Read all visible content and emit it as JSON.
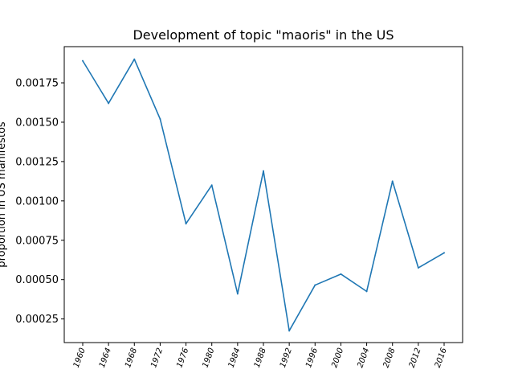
{
  "chart_data": {
    "type": "line",
    "title": "Development of topic \"maoris\" in the US",
    "xlabel": "",
    "ylabel": "proportion in US manifestos",
    "categories": [
      "1960",
      "1964",
      "1968",
      "1972",
      "1976",
      "1980",
      "1984",
      "1988",
      "1992",
      "1996",
      "2000",
      "2004",
      "2008",
      "2012",
      "2016"
    ],
    "series": [
      {
        "values": [
          0.00189,
          0.00162,
          0.0019,
          0.00152,
          0.000855,
          0.0011,
          0.00041,
          0.00119,
          0.000175,
          0.000465,
          0.000535,
          0.000425,
          0.001125,
          0.000575,
          0.00067
        ],
        "color": "#1f77b4"
      }
    ],
    "yticks": [
      0.00025,
      0.0005,
      0.00075,
      0.001,
      0.00125,
      0.0015,
      0.00175
    ],
    "ytick_labels": [
      "0.00025",
      "0.00050",
      "0.00075",
      "0.00100",
      "0.00125",
      "0.00150",
      "0.00175"
    ],
    "ylim": [
      0.0001,
      0.00198
    ],
    "grid": false,
    "legend": "none"
  }
}
